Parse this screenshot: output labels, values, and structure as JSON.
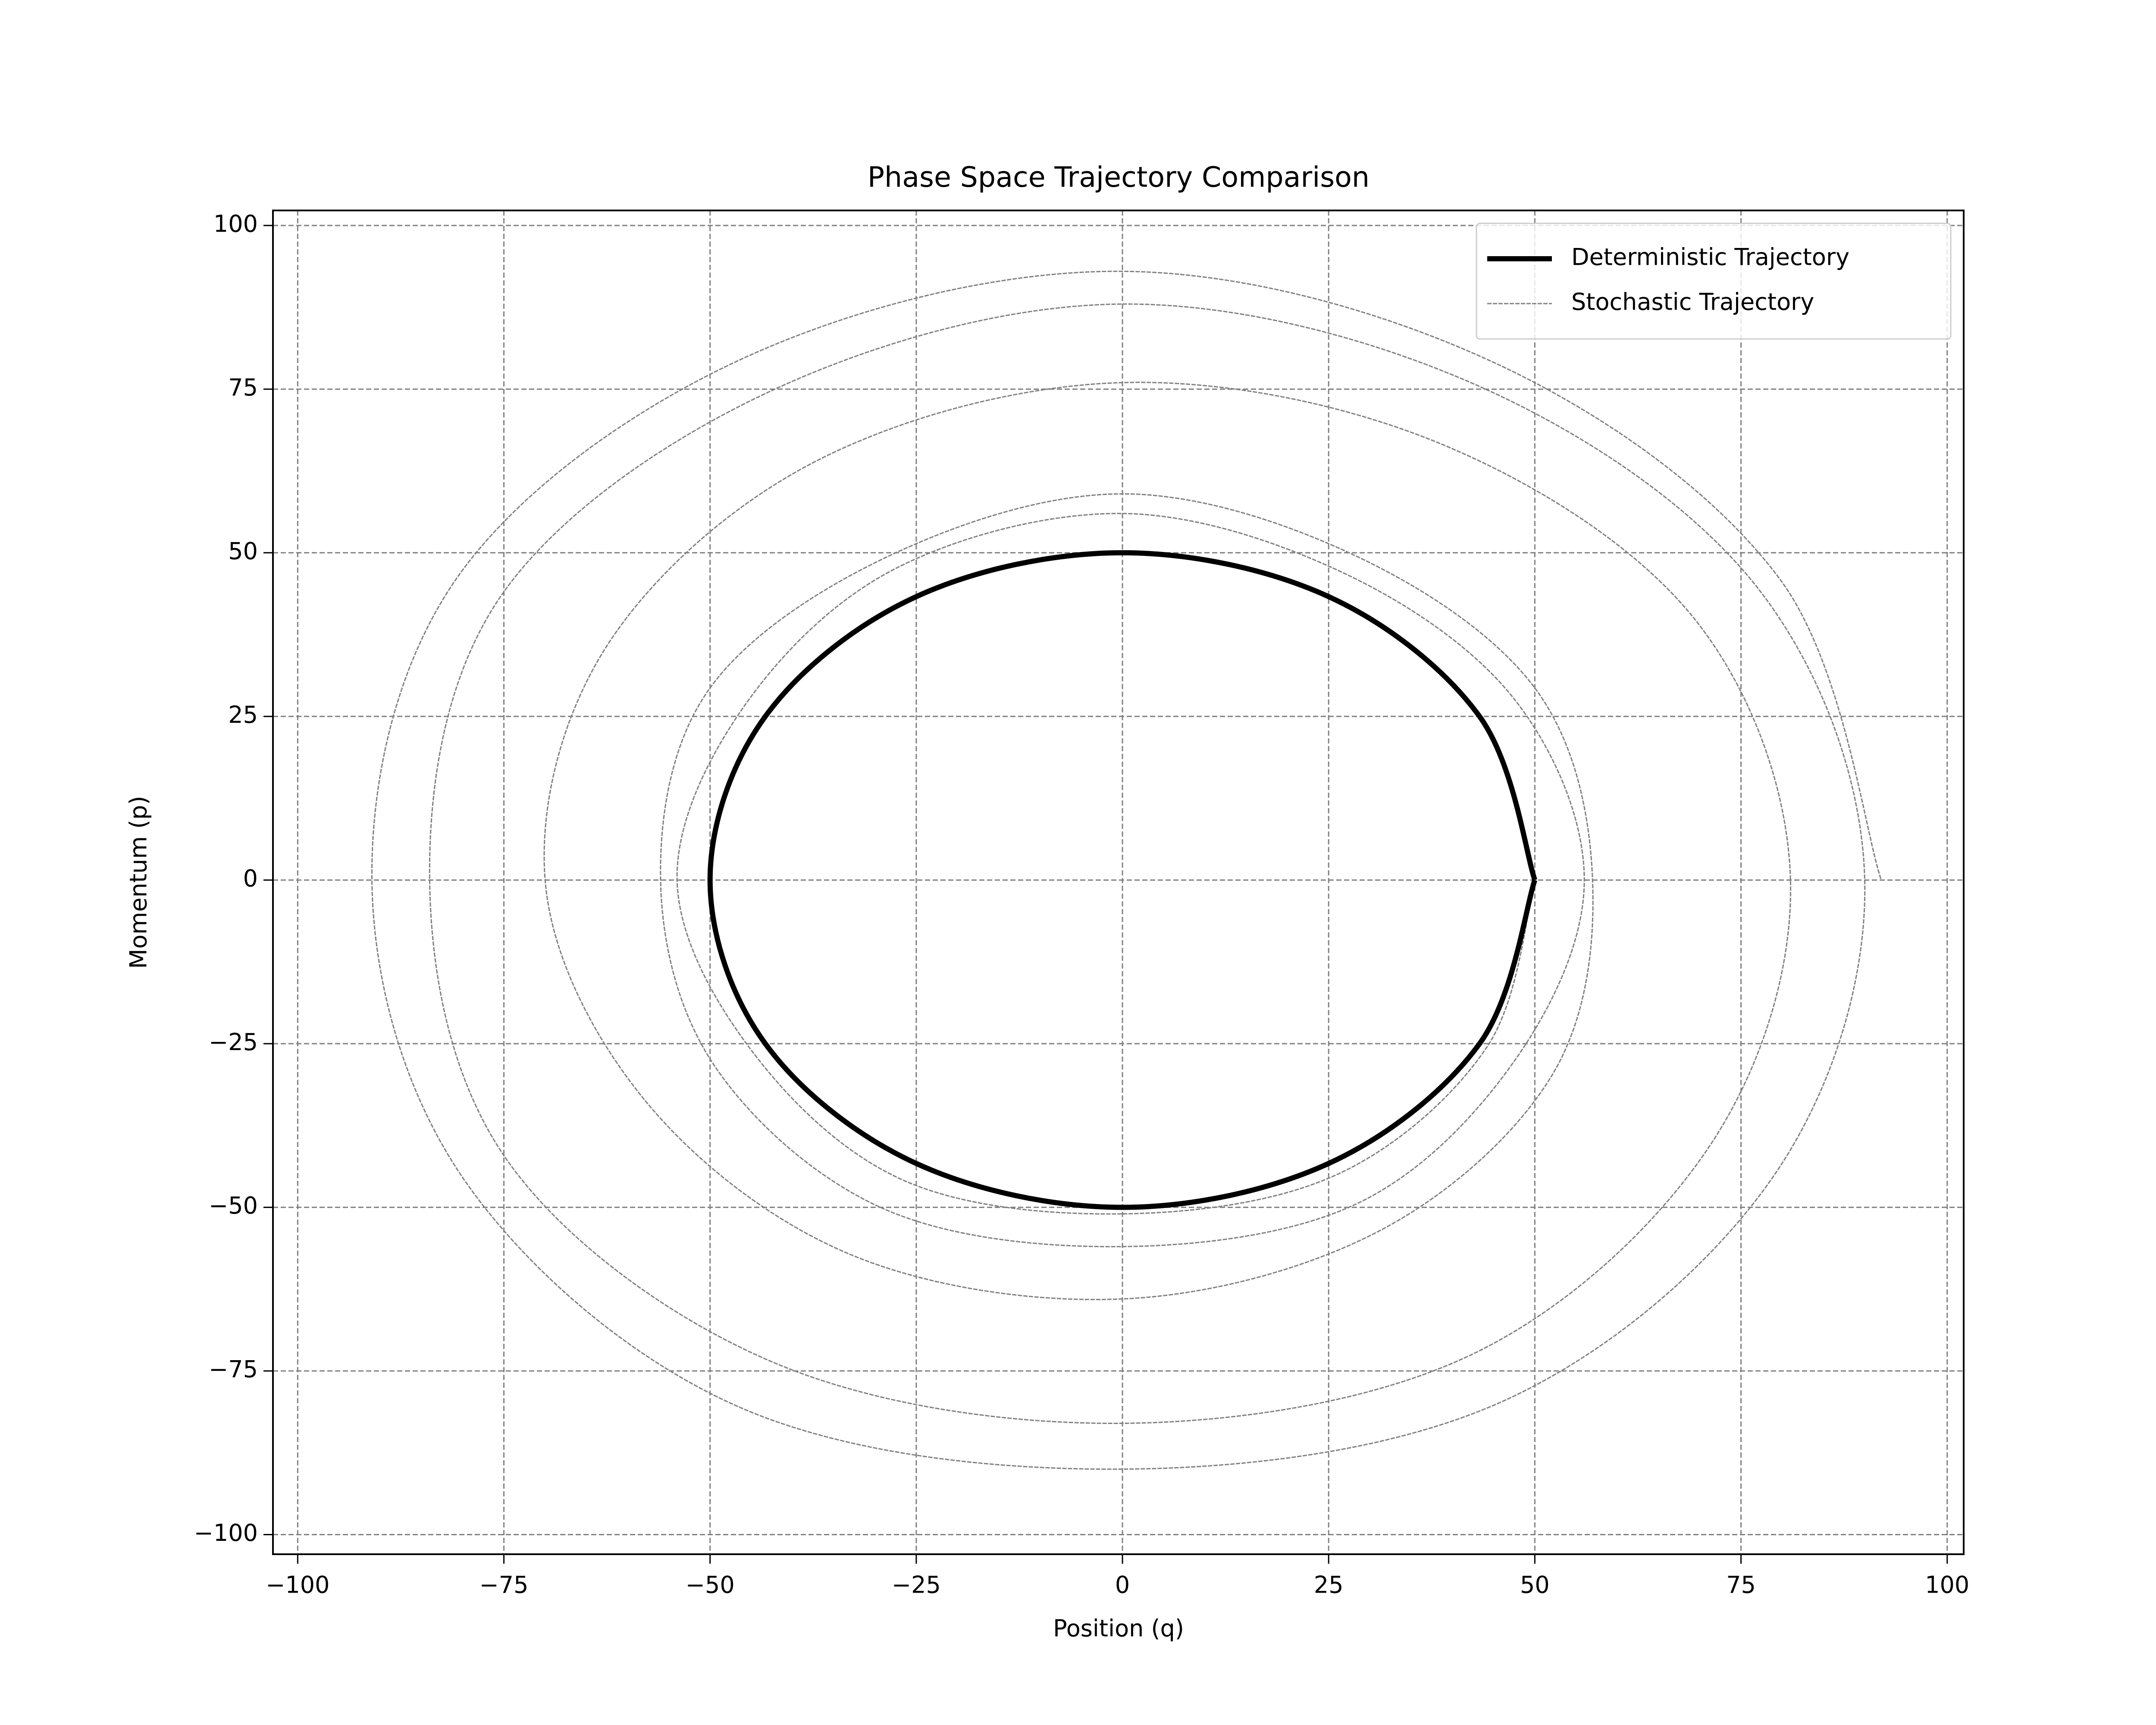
{
  "chart_data": {
    "type": "line",
    "title": "Phase Space Trajectory Comparison",
    "x_label": "Position (q)",
    "y_label": "Momentum (p)",
    "xlim": [
      -103,
      102
    ],
    "ylim": [
      -103,
      102.3
    ],
    "xticks": [
      {
        "value": -100,
        "label": "−100"
      },
      {
        "value": -75,
        "label": "−75"
      },
      {
        "value": -50,
        "label": "−50"
      },
      {
        "value": -25,
        "label": "−25"
      },
      0,
      25,
      50,
      75,
      100
    ],
    "yticks": [
      {
        "value": -100,
        "label": "−100"
      },
      {
        "value": -75,
        "label": "−75"
      },
      {
        "value": -50,
        "label": "−50"
      },
      {
        "value": -25,
        "label": "−25"
      },
      0,
      25,
      50,
      75,
      100
    ],
    "grid": true,
    "legend": "upper right",
    "series": [
      {
        "name": "Deterministic Trajectory",
        "color": "#000000",
        "style": "solid",
        "x": [
          50,
          43.3,
          25,
          0,
          -25,
          -43.3,
          -50,
          -43.3,
          -25,
          0,
          25,
          43.3,
          50
        ],
        "values": [
          0,
          -25,
          -43.3,
          -50,
          -43.3,
          -25,
          0,
          25,
          43.3,
          50,
          43.3,
          25,
          0
        ]
      },
      {
        "name": "Stochastic Trajectory",
        "color": "#808080",
        "style": "dashed",
        "x": [
          50,
          44.2,
          26,
          0,
          -26.5,
          -45,
          -54,
          -45.9,
          -27.5,
          0,
          27,
          47.6,
          56,
          47.6,
          28.5,
          0,
          -29,
          -49.4,
          -56,
          -50.2,
          -28.5,
          0,
          28.5,
          50.2,
          57,
          52,
          31,
          0,
          -33,
          -58,
          -70,
          -62.4,
          -37,
          0,
          38.5,
          69.3,
          81,
          71,
          42,
          0,
          -42.5,
          -74.5,
          -84,
          -75.3,
          -43,
          0,
          43.5,
          77.1,
          90,
          78.8,
          46,
          0,
          -46.5,
          -79.7,
          -91,
          -80.5,
          -46,
          0,
          45.5,
          79.7,
          92
        ],
        "values": [
          0,
          -25.5,
          -45,
          -51,
          -45.9,
          -26,
          0,
          26.5,
          47.6,
          56,
          46.8,
          27.5,
          0,
          -27.5,
          -49.4,
          -56,
          -50.2,
          -28.5,
          0,
          29,
          49.4,
          59,
          49.4,
          29,
          0,
          -30,
          -53.7,
          -64,
          -57.2,
          -33.5,
          0,
          36,
          64.1,
          76,
          66.7,
          40,
          0,
          -41,
          -72.7,
          -83,
          -73.6,
          -43,
          0,
          43.5,
          74.5,
          88,
          75.3,
          44.5,
          0,
          -45.5,
          -79.7,
          -90,
          -80.5,
          -46,
          0,
          46.5,
          79.7,
          93,
          78.8,
          46,
          0
        ]
      }
    ]
  }
}
